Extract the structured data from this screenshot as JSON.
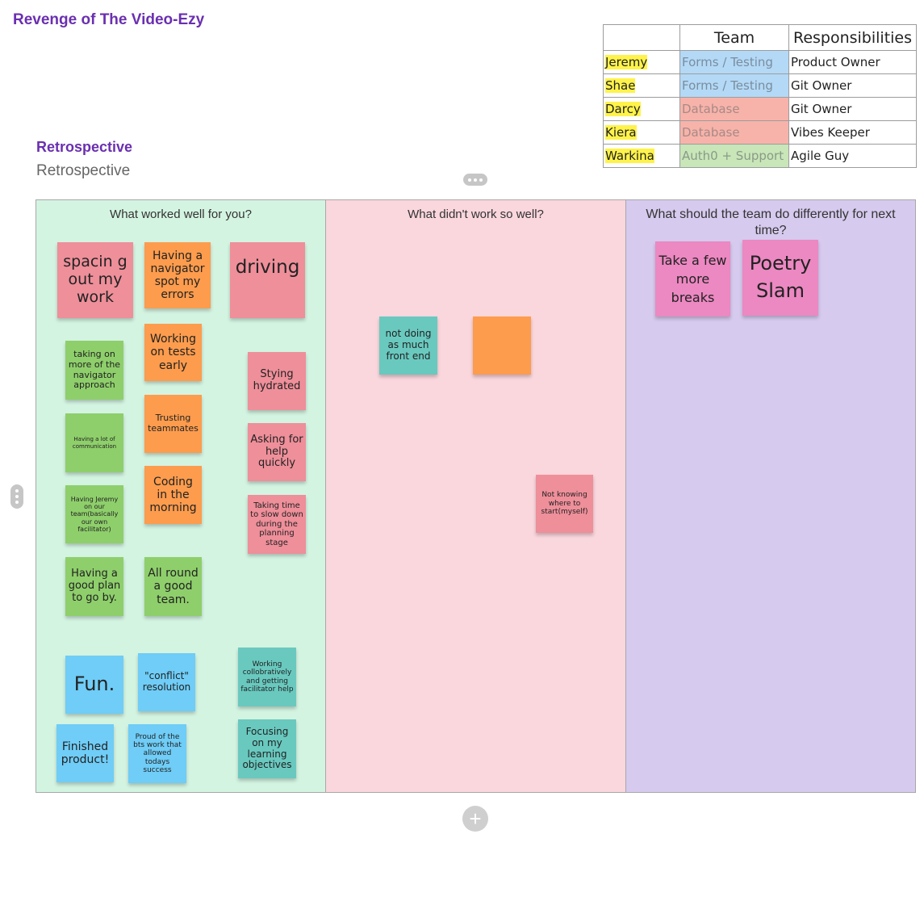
{
  "board": {
    "title": "Revenge of The Video-Ezy"
  },
  "frame": {
    "title": "Retrospective",
    "subtitle": "Retrospective"
  },
  "team_table": {
    "headers": [
      "",
      "Team",
      "Responsibilities"
    ],
    "rows": [
      {
        "name": "Jeremy",
        "team": "Forms / Testing",
        "role": "Product Owner"
      },
      {
        "name": "Shae",
        "team": "Forms / Testing",
        "role": "Git Owner"
      },
      {
        "name": "Darcy",
        "team": "Database",
        "role": "Git Owner"
      },
      {
        "name": "Kiera",
        "team": "Database",
        "role": "Vibes Keeper"
      },
      {
        "name": "Warkina",
        "team": "Auth0 + Support",
        "role": "Agile Guy"
      }
    ]
  },
  "columns": {
    "good": {
      "header": "What worked well for you?"
    },
    "bad": {
      "header": "What didn't work so well?"
    },
    "next": {
      "header": "What should the team do differently for next time?"
    }
  },
  "notes": {
    "good": [
      "spacin g out my work",
      "Having a navigator spot my errors",
      "driving",
      "Working on tests early",
      "taking on more of the navigator approach",
      "Stying hydrated",
      "Trusting teammates",
      "Having a lot of communication",
      "Asking for help quickly",
      "Coding in the morning",
      "Having Jeremy on our team(basically our own facilitator)",
      "Taking time to slow down during the planning stage",
      "Having a good plan to go by.",
      "All round a good team.",
      "Fun.",
      "\"conflict\" resolution",
      "Working collobratively and getting facilitator help",
      "Finished product!",
      "Proud of the bts work that allowed todays success",
      "Focusing on my learning objectives"
    ],
    "bad": [
      "not doing as much front end",
      "",
      "Not knowing where to start(myself)"
    ],
    "next": [
      "Take a few more breaks",
      "Poetry Slam"
    ]
  },
  "colors": {
    "title": "#6a2fb0",
    "col_good": "#d4f4e2",
    "col_bad": "#fad6dd",
    "col_next": "#d6caee",
    "note_pink": "#ee8f9a",
    "note_orange": "#fd9c4d",
    "note_green": "#8ecf6b",
    "note_teal": "#69c9bf",
    "note_blue": "#6fcdf7",
    "note_magenta": "#ec88c2",
    "highlight": "#fff34a"
  },
  "icons": {
    "frame_menu": "horizontal-dots-icon",
    "side_handle": "vertical-dots-icon",
    "add": "plus-icon"
  }
}
